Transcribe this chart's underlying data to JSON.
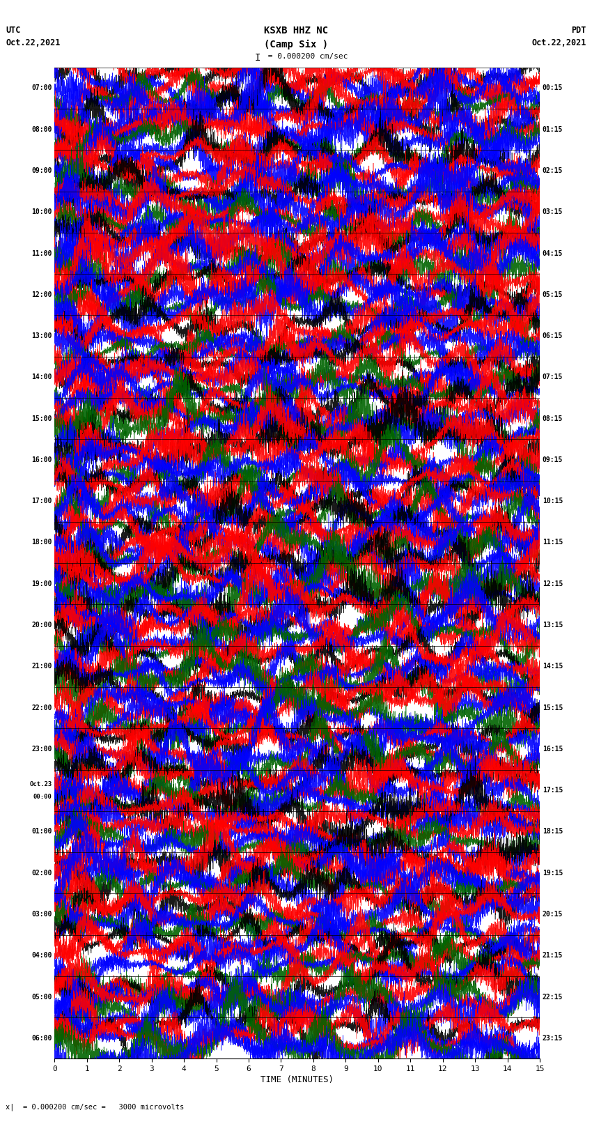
{
  "title_line1": "KSXB HHZ NC",
  "title_line2": "(Camp Six )",
  "scale_label": "I = 0.000200 cm/sec",
  "left_label_line1": "UTC",
  "left_label_line2": "Oct.22,2021",
  "right_label_line1": "PDT",
  "right_label_line2": "Oct.22,2021",
  "bottom_label": "TIME (MINUTES)",
  "footer_label": "= 0.000200 cm/sec =   3000 microvolts",
  "xlabel_ticks": [
    0,
    1,
    2,
    3,
    4,
    5,
    6,
    7,
    8,
    9,
    10,
    11,
    12,
    13,
    14,
    15
  ],
  "left_times_utc": [
    "07:00",
    "08:00",
    "09:00",
    "10:00",
    "11:00",
    "12:00",
    "13:00",
    "14:00",
    "15:00",
    "16:00",
    "17:00",
    "18:00",
    "19:00",
    "20:00",
    "21:00",
    "22:00",
    "23:00",
    "Oct.23\n00:00",
    "01:00",
    "02:00",
    "03:00",
    "04:00",
    "05:00",
    "06:00"
  ],
  "right_times_pdt": [
    "00:15",
    "01:15",
    "02:15",
    "03:15",
    "04:15",
    "05:15",
    "06:15",
    "07:15",
    "08:15",
    "09:15",
    "10:15",
    "11:15",
    "12:15",
    "13:15",
    "14:15",
    "15:15",
    "16:15",
    "17:15",
    "18:15",
    "19:15",
    "20:15",
    "21:15",
    "22:15",
    "23:15"
  ],
  "n_rows": 24,
  "n_cols": 4500,
  "bg_color": "#ffffff",
  "sub_colors": [
    "#000000",
    "#ff0000",
    "#0000ff",
    "#006400"
  ],
  "noise_seed": 42,
  "amplitude": 0.28,
  "sub_row_offsets": [
    0.83,
    0.5,
    0.17
  ],
  "sub_row_scale": 0.28
}
